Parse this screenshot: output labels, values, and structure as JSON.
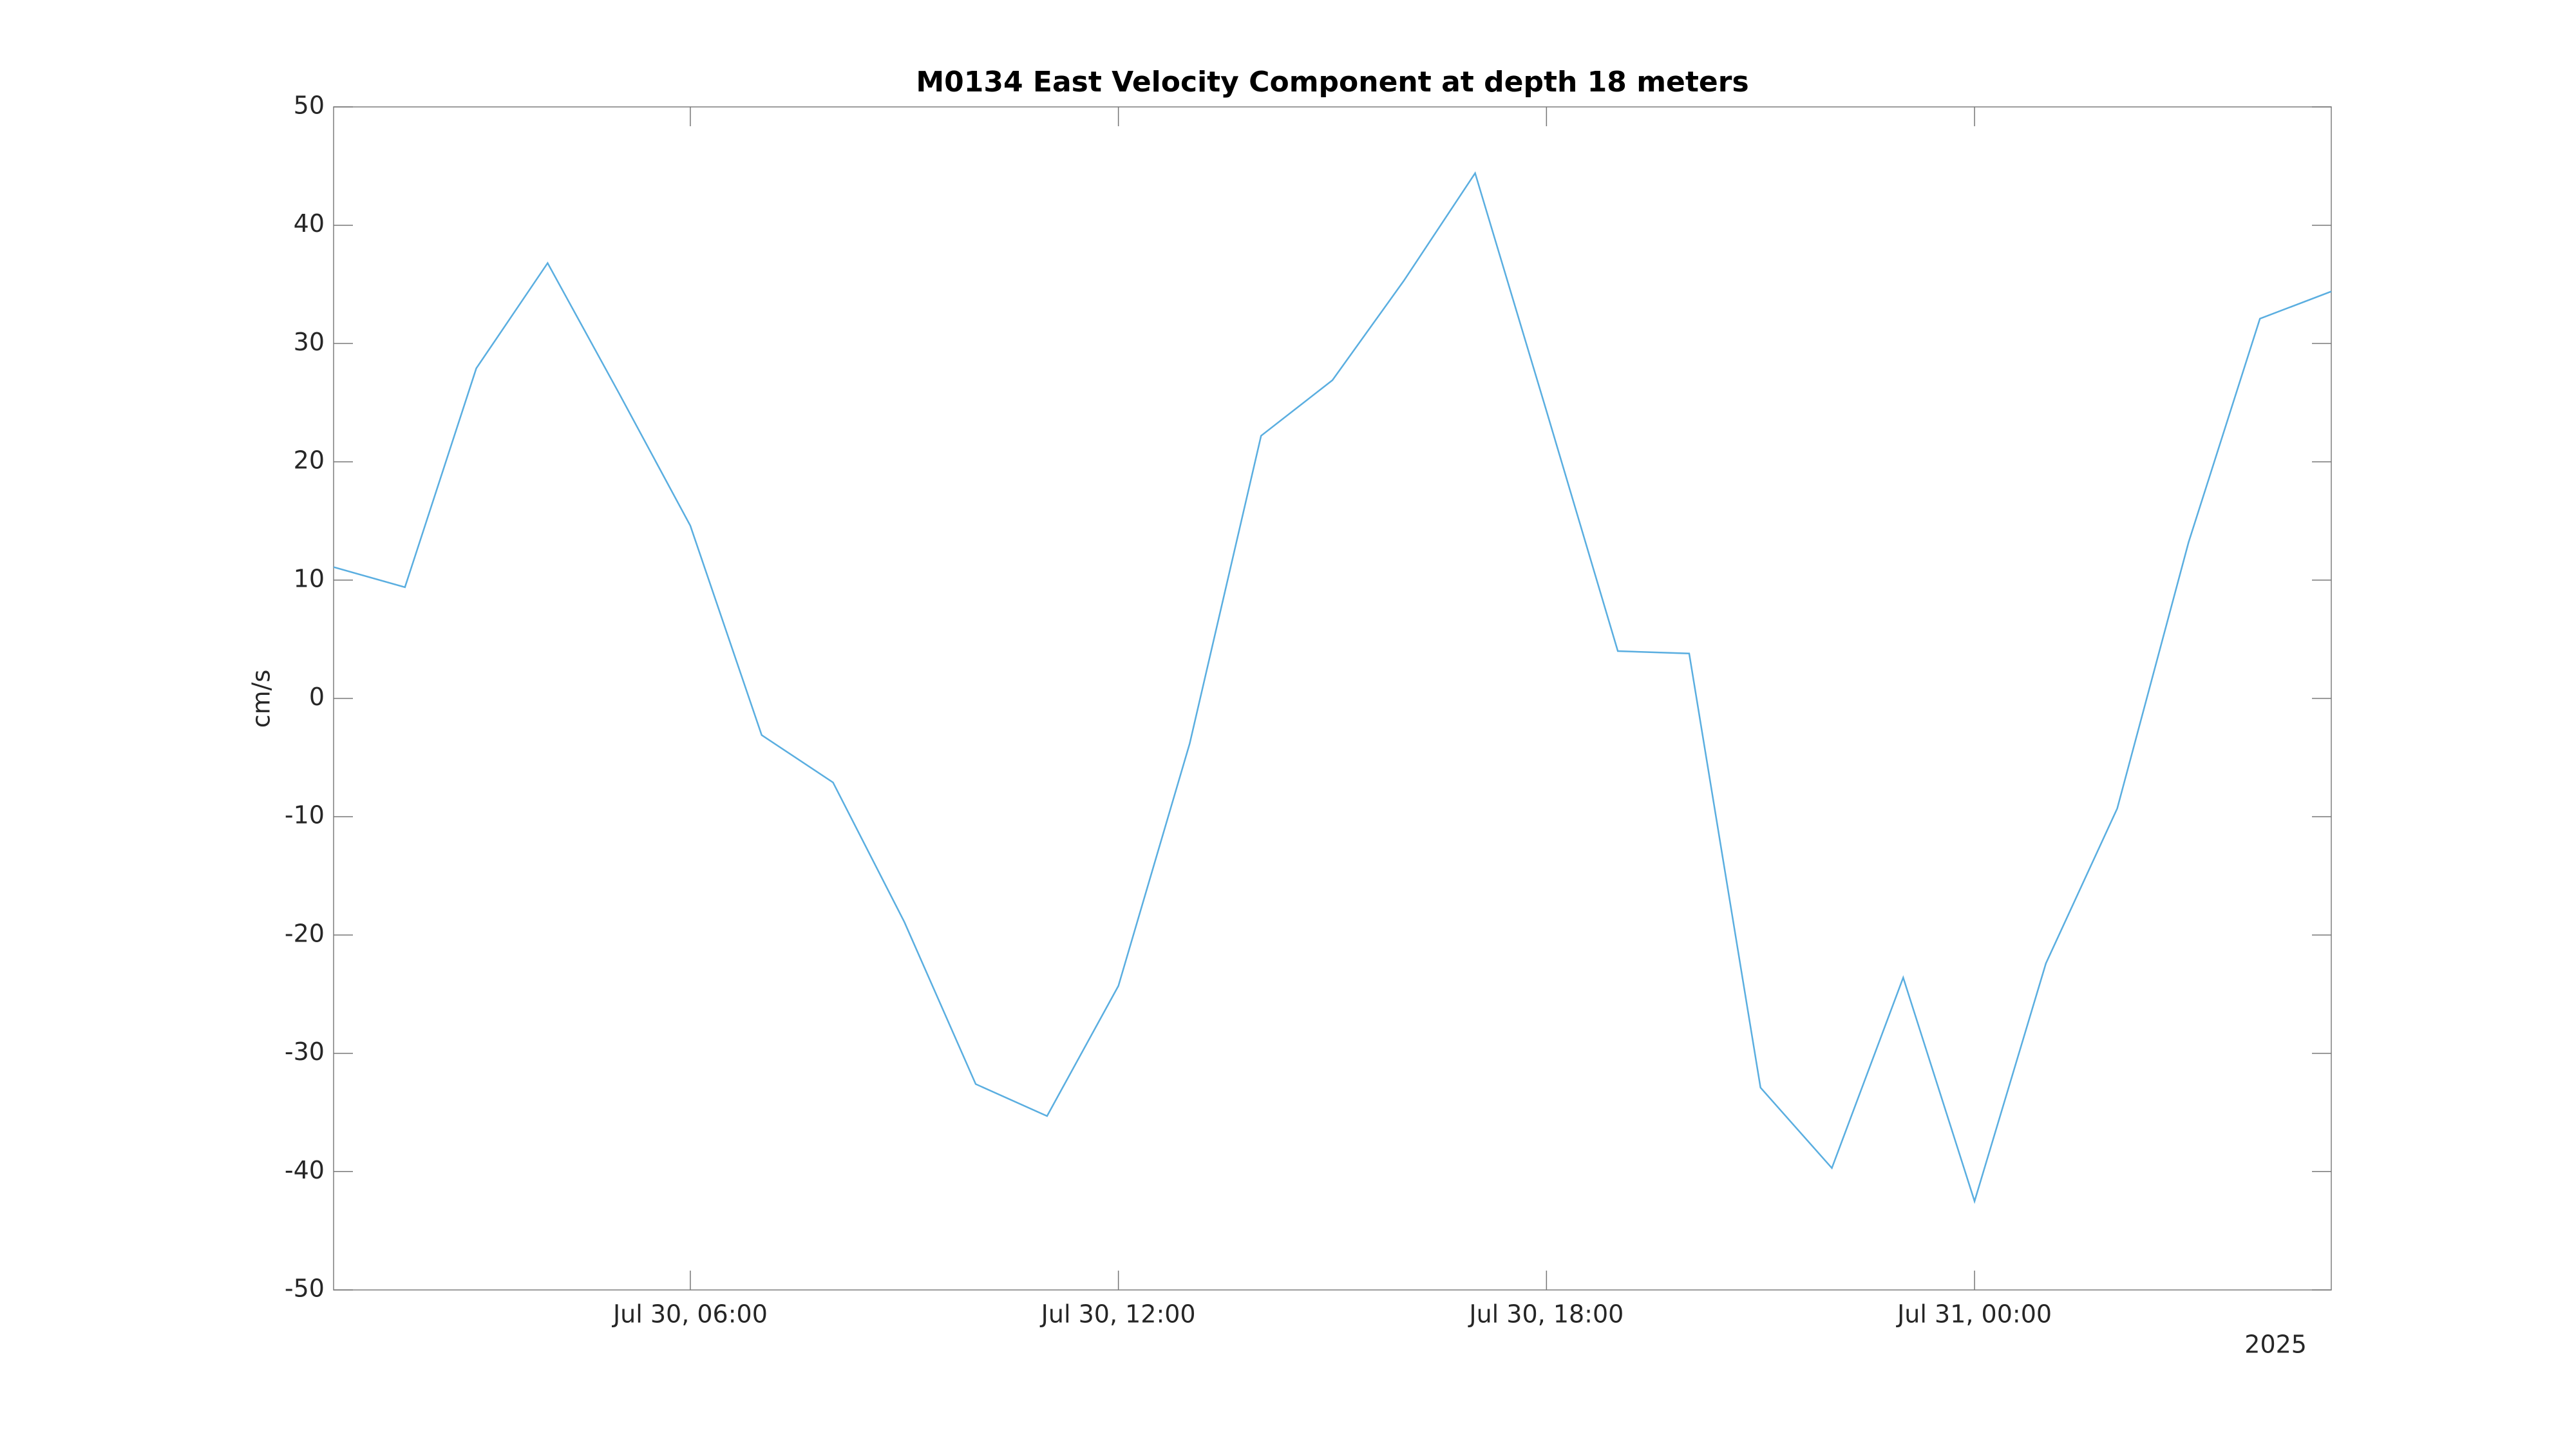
{
  "chart_data": {
    "type": "line",
    "title": "M0134 East Velocity Component at depth 18 meters",
    "y_label": "cm/s",
    "x_year_label": "2025",
    "x": [
      "2025-07-30T01:00",
      "2025-07-30T02:00",
      "2025-07-30T03:00",
      "2025-07-30T04:00",
      "2025-07-30T05:00",
      "2025-07-30T06:00",
      "2025-07-30T07:00",
      "2025-07-30T08:00",
      "2025-07-30T09:00",
      "2025-07-30T10:00",
      "2025-07-30T11:00",
      "2025-07-30T12:00",
      "2025-07-30T13:00",
      "2025-07-30T14:00",
      "2025-07-30T15:00",
      "2025-07-30T16:00",
      "2025-07-30T17:00",
      "2025-07-30T18:00",
      "2025-07-30T19:00",
      "2025-07-30T20:00",
      "2025-07-30T21:00",
      "2025-07-30T22:00",
      "2025-07-30T23:00",
      "2025-07-31T00:00",
      "2025-07-31T01:00",
      "2025-07-31T02:00",
      "2025-07-31T03:00",
      "2025-07-31T04:00",
      "2025-07-31T05:00"
    ],
    "series": [
      {
        "color": "#5aaee0",
        "values": [
          11.1,
          9.4,
          27.9,
          36.8,
          25.8,
          14.6,
          -3.1,
          -7.1,
          -18.9,
          -32.6,
          -35.3,
          -24.3,
          -3.8,
          22.2,
          26.9,
          35.3,
          44.4,
          24.3,
          4.0,
          3.8,
          -32.9,
          -39.7,
          -23.6,
          -42.5,
          -22.4,
          -9.3,
          13.2,
          32.1,
          34.4
        ]
      }
    ],
    "xlim": [
      "2025-07-30T01:00",
      "2025-07-31T05:00"
    ],
    "xticks": [
      {
        "value": "2025-07-30T06:00",
        "label": "Jul 30, 06:00"
      },
      {
        "value": "2025-07-30T12:00",
        "label": "Jul 30, 12:00"
      },
      {
        "value": "2025-07-30T18:00",
        "label": "Jul 30, 18:00"
      },
      {
        "value": "2025-07-31T00:00",
        "label": "Jul 31, 00:00"
      }
    ],
    "ylim": [
      -50,
      50
    ],
    "yticks": [
      -50,
      -40,
      -30,
      -20,
      -10,
      0,
      10,
      20,
      30,
      40,
      50
    ],
    "grid": false
  }
}
